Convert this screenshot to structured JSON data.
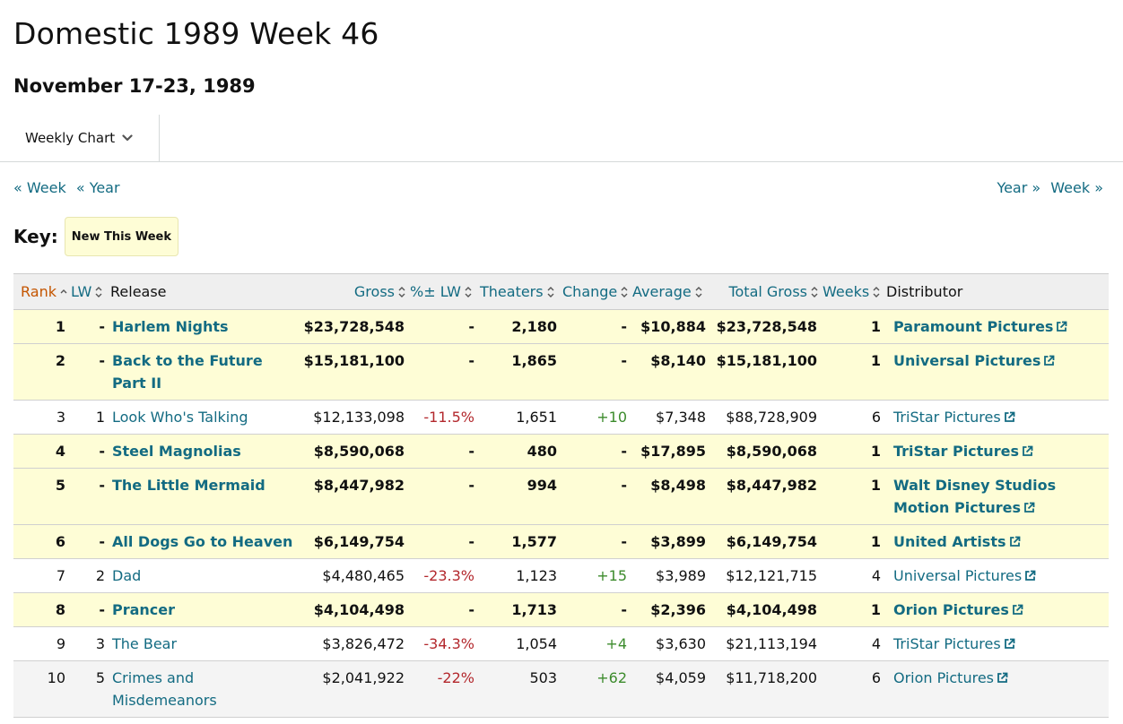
{
  "header": {
    "title": "Domestic 1989 Week 46",
    "subtitle": "November 17-23, 1989"
  },
  "tabs": {
    "selected": "Weekly Chart"
  },
  "nav": {
    "prev_week": "« Week",
    "prev_year": "« Year",
    "next_year": "Year »",
    "next_week": "Week »"
  },
  "key": {
    "label": "Key:",
    "badge": "New This Week"
  },
  "table": {
    "columns": [
      "Rank",
      "LW",
      "Release",
      "Gross",
      "%± LW",
      "Theaters",
      "Change",
      "Average",
      "Total Gross",
      "Weeks",
      "Distributor"
    ],
    "rows": [
      {
        "rank": "1",
        "lw": "-",
        "release": "Harlem Nights",
        "gross": "$23,728,548",
        "pct": "-",
        "theaters": "2,180",
        "change": "-",
        "average": "$10,884",
        "total": "$23,728,548",
        "weeks": "1",
        "distributor": "Paramount Pictures",
        "new": true
      },
      {
        "rank": "2",
        "lw": "-",
        "release": "Back to the Future Part II",
        "gross": "$15,181,100",
        "pct": "-",
        "theaters": "1,865",
        "change": "-",
        "average": "$8,140",
        "total": "$15,181,100",
        "weeks": "1",
        "distributor": "Universal Pictures",
        "new": true
      },
      {
        "rank": "3",
        "lw": "1",
        "release": "Look Who's Talking",
        "gross": "$12,133,098",
        "pct": "-11.5%",
        "theaters": "1,651",
        "change": "+10",
        "average": "$7,348",
        "total": "$88,728,909",
        "weeks": "6",
        "distributor": "TriStar Pictures",
        "new": false
      },
      {
        "rank": "4",
        "lw": "-",
        "release": "Steel Magnolias",
        "gross": "$8,590,068",
        "pct": "-",
        "theaters": "480",
        "change": "-",
        "average": "$17,895",
        "total": "$8,590,068",
        "weeks": "1",
        "distributor": "TriStar Pictures",
        "new": true
      },
      {
        "rank": "5",
        "lw": "-",
        "release": "The Little Mermaid",
        "gross": "$8,447,982",
        "pct": "-",
        "theaters": "994",
        "change": "-",
        "average": "$8,498",
        "total": "$8,447,982",
        "weeks": "1",
        "distributor": "Walt Disney Studios Motion Pictures",
        "new": true
      },
      {
        "rank": "6",
        "lw": "-",
        "release": "All Dogs Go to Heaven",
        "gross": "$6,149,754",
        "pct": "-",
        "theaters": "1,577",
        "change": "-",
        "average": "$3,899",
        "total": "$6,149,754",
        "weeks": "1",
        "distributor": "United Artists",
        "new": true
      },
      {
        "rank": "7",
        "lw": "2",
        "release": "Dad",
        "gross": "$4,480,465",
        "pct": "-23.3%",
        "theaters": "1,123",
        "change": "+15",
        "average": "$3,989",
        "total": "$12,121,715",
        "weeks": "4",
        "distributor": "Universal Pictures",
        "new": false
      },
      {
        "rank": "8",
        "lw": "-",
        "release": "Prancer",
        "gross": "$4,104,498",
        "pct": "-",
        "theaters": "1,713",
        "change": "-",
        "average": "$2,396",
        "total": "$4,104,498",
        "weeks": "1",
        "distributor": "Orion Pictures",
        "new": true
      },
      {
        "rank": "9",
        "lw": "3",
        "release": "The Bear",
        "gross": "$3,826,472",
        "pct": "-34.3%",
        "theaters": "1,054",
        "change": "+4",
        "average": "$3,630",
        "total": "$21,113,194",
        "weeks": "4",
        "distributor": "TriStar Pictures",
        "new": false
      },
      {
        "rank": "10",
        "lw": "5",
        "release": "Crimes and Misdemeanors",
        "gross": "$2,041,922",
        "pct": "-22%",
        "theaters": "503",
        "change": "+62",
        "average": "$4,059",
        "total": "$11,718,200",
        "weeks": "6",
        "distributor": "Orion Pictures",
        "new": false
      }
    ]
  },
  "colors": {
    "link": "#136b82",
    "active_sort": "#c45500",
    "new_row_bg": "#fefdd6",
    "negative": "#b3282d",
    "positive": "#3c8b2c"
  },
  "icons": {
    "tab_dropdown": "chevron-down-icon",
    "sort": "sort-arrows-icon",
    "external": "external-link-icon"
  }
}
